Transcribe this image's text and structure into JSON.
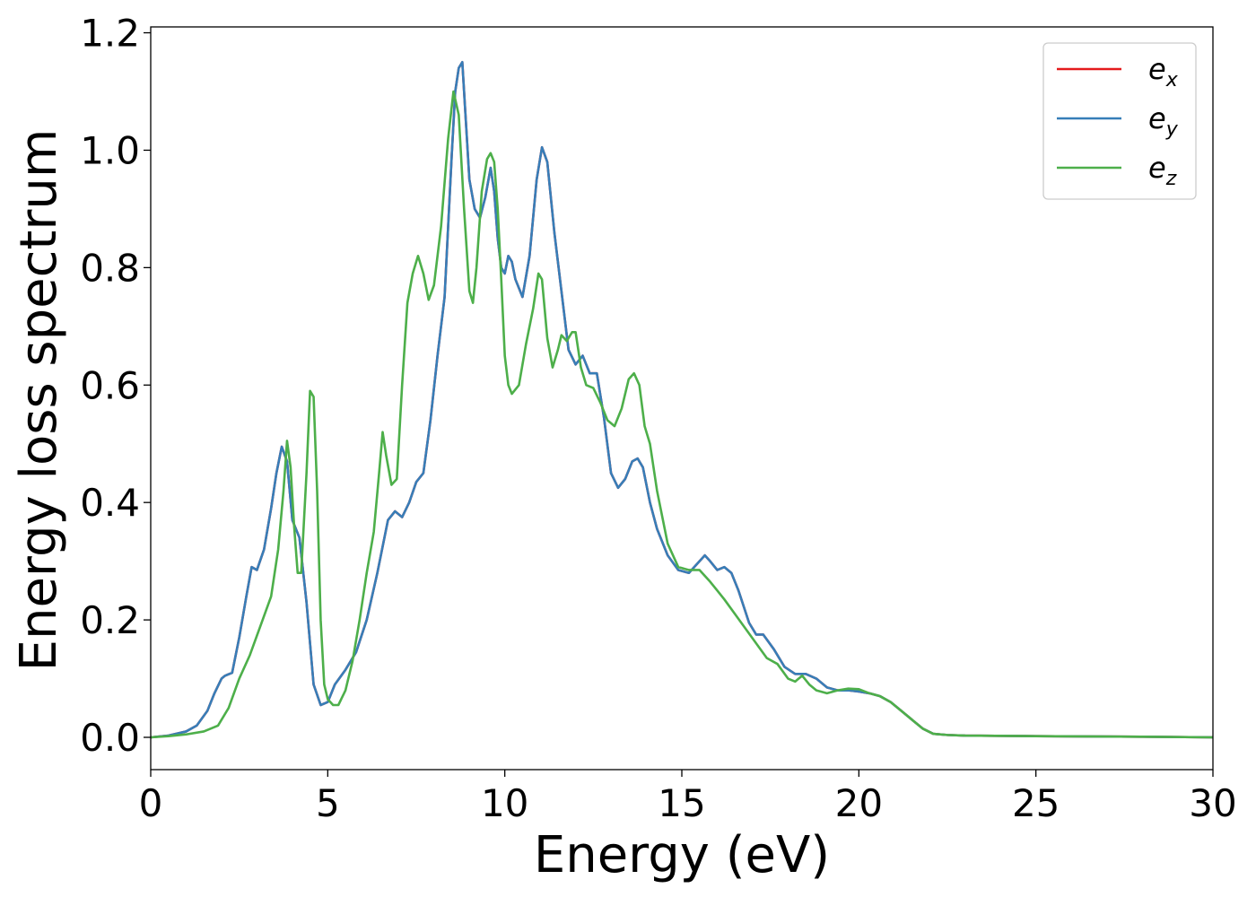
{
  "chart_data": {
    "type": "line",
    "xlabel": "Energy (eV)",
    "ylabel": "Energy loss spectrum",
    "xlim": [
      0,
      30
    ],
    "ylim": [
      -0.055,
      1.21
    ],
    "xticks": [
      0,
      5,
      10,
      15,
      20,
      25,
      30
    ],
    "xtick_labels": [
      "0",
      "5",
      "10",
      "15",
      "20",
      "25",
      "30"
    ],
    "yticks": [
      0.0,
      0.2,
      0.4,
      0.6,
      0.8,
      1.0,
      1.2
    ],
    "ytick_labels": [
      "0.0",
      "0.2",
      "0.4",
      "0.6",
      "0.8",
      "1.0",
      "1.2"
    ],
    "grid": false,
    "legend_position": "top-right",
    "series": [
      {
        "name": "e",
        "subscript": "x",
        "color": "#e41a1c",
        "x": [
          0,
          0.5,
          1.0,
          1.3,
          1.6,
          1.8,
          2.0,
          2.1,
          2.3,
          2.5,
          2.7,
          2.85,
          3.0,
          3.2,
          3.4,
          3.55,
          3.7,
          3.85,
          4.0,
          4.2,
          4.4,
          4.6,
          4.8,
          5.0,
          5.2,
          5.5,
          5.8,
          6.1,
          6.4,
          6.7,
          6.9,
          7.1,
          7.3,
          7.5,
          7.7,
          7.9,
          8.1,
          8.3,
          8.5,
          8.6,
          8.7,
          8.8,
          8.9,
          9.0,
          9.15,
          9.3,
          9.45,
          9.6,
          9.7,
          9.8,
          9.9,
          10.0,
          10.1,
          10.2,
          10.3,
          10.5,
          10.7,
          10.9,
          11.05,
          11.2,
          11.4,
          11.6,
          11.8,
          12.0,
          12.2,
          12.4,
          12.6,
          12.8,
          13.0,
          13.2,
          13.4,
          13.6,
          13.75,
          13.9,
          14.1,
          14.3,
          14.6,
          14.9,
          15.2,
          15.5,
          15.65,
          15.8,
          16.0,
          16.2,
          16.4,
          16.6,
          16.9,
          17.1,
          17.3,
          17.6,
          17.9,
          18.2,
          18.5,
          18.8,
          19.1,
          19.4,
          19.7,
          20.0,
          20.3,
          20.6,
          20.9,
          21.2,
          21.5,
          21.8,
          22.1,
          22.5,
          23.0,
          25.0,
          28.0,
          30.0
        ],
        "y": [
          0.0,
          0.003,
          0.01,
          0.02,
          0.045,
          0.075,
          0.1,
          0.105,
          0.11,
          0.17,
          0.24,
          0.29,
          0.285,
          0.32,
          0.39,
          0.45,
          0.495,
          0.47,
          0.37,
          0.34,
          0.23,
          0.09,
          0.055,
          0.06,
          0.09,
          0.115,
          0.145,
          0.2,
          0.28,
          0.37,
          0.385,
          0.375,
          0.4,
          0.435,
          0.45,
          0.54,
          0.65,
          0.75,
          0.99,
          1.1,
          1.14,
          1.15,
          1.05,
          0.95,
          0.9,
          0.885,
          0.92,
          0.97,
          0.93,
          0.85,
          0.8,
          0.79,
          0.82,
          0.81,
          0.78,
          0.75,
          0.82,
          0.95,
          1.005,
          0.98,
          0.86,
          0.76,
          0.66,
          0.635,
          0.65,
          0.62,
          0.62,
          0.545,
          0.45,
          0.425,
          0.44,
          0.47,
          0.475,
          0.46,
          0.4,
          0.355,
          0.31,
          0.285,
          0.28,
          0.3,
          0.31,
          0.3,
          0.285,
          0.29,
          0.28,
          0.25,
          0.195,
          0.175,
          0.175,
          0.15,
          0.12,
          0.108,
          0.108,
          0.1,
          0.085,
          0.08,
          0.08,
          0.078,
          0.075,
          0.07,
          0.06,
          0.045,
          0.03,
          0.015,
          0.006,
          0.004,
          0.003,
          0.002,
          0.001,
          0.0
        ]
      },
      {
        "name": "e",
        "subscript": "y",
        "color": "#377eb8",
        "x": [
          0,
          0.5,
          1.0,
          1.3,
          1.6,
          1.8,
          2.0,
          2.1,
          2.3,
          2.5,
          2.7,
          2.85,
          3.0,
          3.2,
          3.4,
          3.55,
          3.7,
          3.85,
          4.0,
          4.2,
          4.4,
          4.6,
          4.8,
          5.0,
          5.2,
          5.5,
          5.8,
          6.1,
          6.4,
          6.7,
          6.9,
          7.1,
          7.3,
          7.5,
          7.7,
          7.9,
          8.1,
          8.3,
          8.5,
          8.6,
          8.7,
          8.8,
          8.9,
          9.0,
          9.15,
          9.3,
          9.45,
          9.6,
          9.7,
          9.8,
          9.9,
          10.0,
          10.1,
          10.2,
          10.3,
          10.5,
          10.7,
          10.9,
          11.05,
          11.2,
          11.4,
          11.6,
          11.8,
          12.0,
          12.2,
          12.4,
          12.6,
          12.8,
          13.0,
          13.2,
          13.4,
          13.6,
          13.75,
          13.9,
          14.1,
          14.3,
          14.6,
          14.9,
          15.2,
          15.5,
          15.65,
          15.8,
          16.0,
          16.2,
          16.4,
          16.6,
          16.9,
          17.1,
          17.3,
          17.6,
          17.9,
          18.2,
          18.5,
          18.8,
          19.1,
          19.4,
          19.7,
          20.0,
          20.3,
          20.6,
          20.9,
          21.2,
          21.5,
          21.8,
          22.1,
          22.5,
          23.0,
          25.0,
          28.0,
          30.0
        ],
        "y": [
          0.0,
          0.003,
          0.01,
          0.02,
          0.045,
          0.075,
          0.1,
          0.105,
          0.11,
          0.17,
          0.24,
          0.29,
          0.285,
          0.32,
          0.39,
          0.45,
          0.495,
          0.47,
          0.37,
          0.34,
          0.23,
          0.09,
          0.055,
          0.06,
          0.09,
          0.115,
          0.145,
          0.2,
          0.28,
          0.37,
          0.385,
          0.375,
          0.4,
          0.435,
          0.45,
          0.54,
          0.65,
          0.75,
          0.99,
          1.1,
          1.14,
          1.15,
          1.05,
          0.95,
          0.9,
          0.885,
          0.92,
          0.97,
          0.93,
          0.85,
          0.8,
          0.79,
          0.82,
          0.81,
          0.78,
          0.75,
          0.82,
          0.95,
          1.005,
          0.98,
          0.86,
          0.76,
          0.66,
          0.635,
          0.65,
          0.62,
          0.62,
          0.545,
          0.45,
          0.425,
          0.44,
          0.47,
          0.475,
          0.46,
          0.4,
          0.355,
          0.31,
          0.285,
          0.28,
          0.3,
          0.31,
          0.3,
          0.285,
          0.29,
          0.28,
          0.25,
          0.195,
          0.175,
          0.175,
          0.15,
          0.12,
          0.108,
          0.108,
          0.1,
          0.085,
          0.08,
          0.08,
          0.078,
          0.075,
          0.07,
          0.06,
          0.045,
          0.03,
          0.015,
          0.006,
          0.004,
          0.003,
          0.002,
          0.001,
          0.0
        ]
      },
      {
        "name": "e",
        "subscript": "z",
        "color": "#4daf4a",
        "x": [
          0,
          0.5,
          1.0,
          1.5,
          1.9,
          2.2,
          2.5,
          2.8,
          3.1,
          3.4,
          3.6,
          3.75,
          3.85,
          3.95,
          4.05,
          4.15,
          4.25,
          4.4,
          4.5,
          4.6,
          4.7,
          4.8,
          4.9,
          5.0,
          5.15,
          5.3,
          5.5,
          5.7,
          5.9,
          6.1,
          6.3,
          6.45,
          6.55,
          6.65,
          6.8,
          6.95,
          7.1,
          7.25,
          7.4,
          7.55,
          7.7,
          7.85,
          8.0,
          8.2,
          8.4,
          8.55,
          8.7,
          8.85,
          9.0,
          9.1,
          9.2,
          9.35,
          9.5,
          9.6,
          9.7,
          9.8,
          9.9,
          10.0,
          10.1,
          10.2,
          10.4,
          10.6,
          10.8,
          10.95,
          11.05,
          11.2,
          11.35,
          11.5,
          11.6,
          11.75,
          11.9,
          12.0,
          12.15,
          12.3,
          12.5,
          12.7,
          12.9,
          13.1,
          13.3,
          13.5,
          13.65,
          13.8,
          13.95,
          14.1,
          14.3,
          14.6,
          14.9,
          15.2,
          15.5,
          15.8,
          16.0,
          16.2,
          16.5,
          16.8,
          17.1,
          17.4,
          17.7,
          18.0,
          18.2,
          18.4,
          18.6,
          18.8,
          19.1,
          19.4,
          19.7,
          20.0,
          20.3,
          20.6,
          20.9,
          21.2,
          21.5,
          21.8,
          22.1,
          22.5,
          23.0,
          25.0,
          28.0,
          30.0
        ],
        "y": [
          0.0,
          0.002,
          0.005,
          0.01,
          0.02,
          0.05,
          0.1,
          0.14,
          0.19,
          0.24,
          0.32,
          0.42,
          0.505,
          0.46,
          0.36,
          0.28,
          0.28,
          0.45,
          0.59,
          0.58,
          0.42,
          0.2,
          0.09,
          0.065,
          0.055,
          0.055,
          0.08,
          0.13,
          0.2,
          0.28,
          0.35,
          0.45,
          0.52,
          0.48,
          0.43,
          0.44,
          0.6,
          0.74,
          0.79,
          0.82,
          0.79,
          0.745,
          0.77,
          0.87,
          1.02,
          1.1,
          1.06,
          0.9,
          0.76,
          0.74,
          0.8,
          0.93,
          0.985,
          0.995,
          0.98,
          0.9,
          0.78,
          0.65,
          0.6,
          0.585,
          0.6,
          0.67,
          0.73,
          0.79,
          0.78,
          0.68,
          0.63,
          0.66,
          0.685,
          0.675,
          0.69,
          0.69,
          0.63,
          0.6,
          0.595,
          0.57,
          0.54,
          0.53,
          0.56,
          0.61,
          0.62,
          0.6,
          0.53,
          0.5,
          0.42,
          0.33,
          0.29,
          0.285,
          0.285,
          0.265,
          0.25,
          0.235,
          0.21,
          0.185,
          0.16,
          0.135,
          0.125,
          0.1,
          0.095,
          0.105,
          0.09,
          0.08,
          0.075,
          0.08,
          0.083,
          0.082,
          0.075,
          0.07,
          0.06,
          0.045,
          0.03,
          0.015,
          0.006,
          0.004,
          0.003,
          0.002,
          0.001,
          0.0
        ]
      }
    ]
  }
}
